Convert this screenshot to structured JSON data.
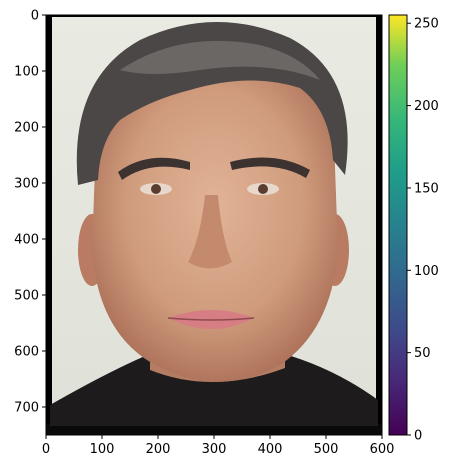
{
  "chart_data": {
    "type": "image",
    "image_description_name": "portrait-photo",
    "image_size": {
      "width": 600,
      "height": 750
    },
    "xlim": [
      0,
      600
    ],
    "ylim": [
      750,
      0
    ],
    "x_ticks": [
      0,
      100,
      200,
      300,
      400,
      500,
      600
    ],
    "y_ticks": [
      0,
      100,
      200,
      300,
      400,
      500,
      600,
      700
    ],
    "x_tick_labels": [
      "0",
      "100",
      "200",
      "300",
      "400",
      "500",
      "600"
    ],
    "y_tick_labels": [
      "0",
      "100",
      "200",
      "300",
      "400",
      "500",
      "600",
      "700"
    ],
    "colorbar": {
      "colormap": "viridis",
      "range": [
        0,
        255
      ],
      "ticks": [
        0,
        50,
        100,
        150,
        200,
        250
      ],
      "tick_labels": [
        "0",
        "50",
        "100",
        "150",
        "200",
        "250"
      ]
    }
  },
  "colors": {
    "background": "#e6e8df",
    "skin": "#cf9b7c",
    "hair": "#4a4746",
    "jacket": "#1d1b1c",
    "lips": "#d77e84"
  }
}
